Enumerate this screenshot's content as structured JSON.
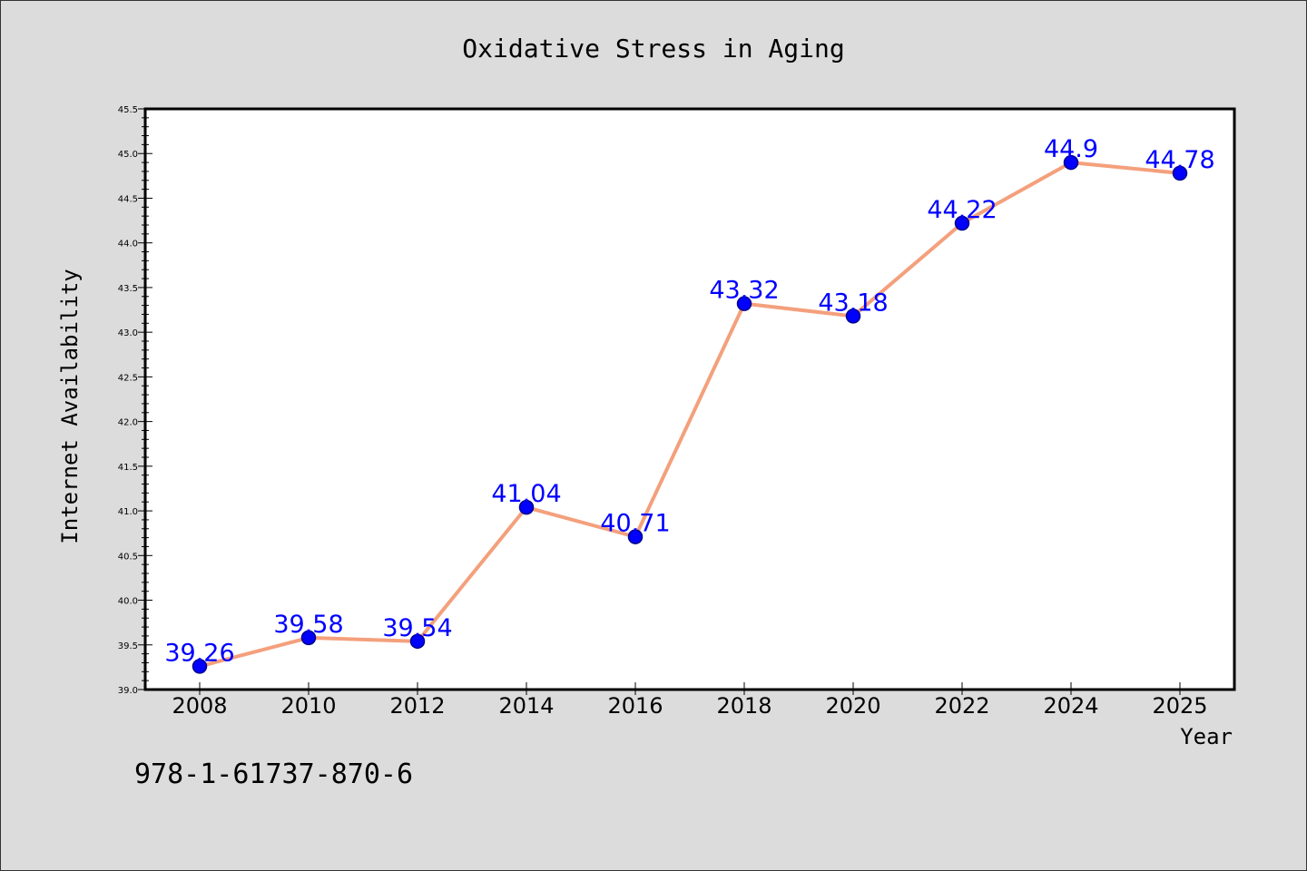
{
  "chart_data": {
    "type": "line",
    "title": "Oxidative Stress in Aging",
    "xlabel": "Year",
    "ylabel": "Internet Availability",
    "categories": [
      "2008",
      "2010",
      "2012",
      "2014",
      "2016",
      "2018",
      "2020",
      "2022",
      "2024",
      "2025"
    ],
    "series": [
      {
        "values": [
          39.26,
          39.58,
          39.54,
          41.04,
          40.71,
          43.32,
          43.18,
          44.22,
          44.9,
          44.78
        ],
        "data_labels": [
          "39.26",
          "39.58",
          "39.54",
          "41.04",
          "40.71",
          "43.32",
          "43.18",
          "44.22",
          "44.9",
          "44.78"
        ]
      }
    ],
    "ylim": [
      39.0,
      45.5
    ],
    "yticks": [
      "39.0",
      "39.5",
      "40.0",
      "40.5",
      "41.0",
      "41.5",
      "42.0",
      "42.5",
      "43.0",
      "43.5",
      "44.0",
      "44.5",
      "45.0",
      "45.5"
    ],
    "grid": false,
    "legend": "none",
    "colors": {
      "line": "#f4a07c",
      "marker_fill": "#0000ff",
      "marker_edge": "#00008b",
      "data_label": "#0000ff",
      "background": "#dcdcdc",
      "plot_background": "#ffffff"
    }
  },
  "footer": {
    "isbn": "978-1-61737-870-6"
  }
}
